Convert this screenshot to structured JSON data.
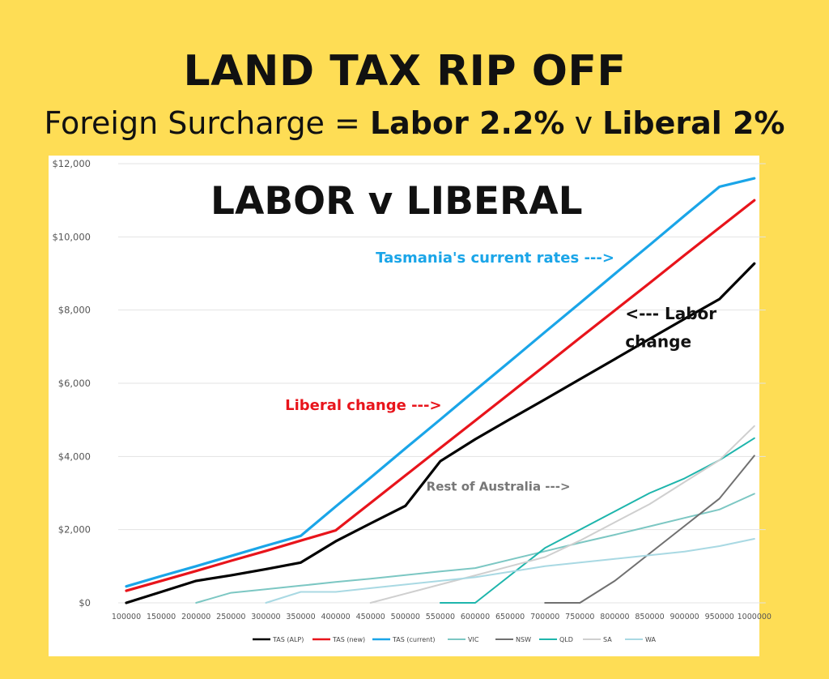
{
  "header": {
    "title": "LAND TAX RIP OFF",
    "subtitle_prefix": "Foreign Surcharge = ",
    "subtitle_labor": "Labor 2.2%",
    "subtitle_mid": " v ",
    "subtitle_liberal": "Liberal 2%"
  },
  "chart_data": {
    "type": "line",
    "title": "LABOR v LIBERAL",
    "xlabel": "",
    "ylabel": "",
    "categories": [
      "100000",
      "150000",
      "200000",
      "250000",
      "300000",
      "350000",
      "400000",
      "450000",
      "500000",
      "550000",
      "600000",
      "650000",
      "700000",
      "750000",
      "800000",
      "850000",
      "900000",
      "950000",
      "1000000"
    ],
    "ylim": [
      0,
      12000
    ],
    "yticks": [
      0,
      2000,
      4000,
      6000,
      8000,
      10000,
      12000
    ],
    "ytick_labels": [
      "$0",
      "$2,000",
      "$4,000",
      "$6,000",
      "$8,000",
      "$10,000",
      "$12,000"
    ],
    "grid": true,
    "legend_position": "bottom",
    "series": [
      {
        "name": "TAS (ALP)",
        "color": "#000000",
        "width": 3.2,
        "values": [
          0,
          300,
          600,
          750,
          920,
          1100,
          1680,
          2170,
          2650,
          3870,
          4470,
          5020,
          5560,
          6110,
          6660,
          7210,
          7760,
          8300,
          9270
        ]
      },
      {
        "name": "TAS (new)",
        "color": "#E8141B",
        "width": 3.2,
        "values": [
          330,
          600,
          870,
          1150,
          1420,
          1700,
          1980,
          2730,
          3480,
          4230,
          4980,
          5730,
          6480,
          7240,
          7990,
          8740,
          9500,
          10250,
          11000
        ]
      },
      {
        "name": "TAS (current)",
        "color": "#1AA5E8",
        "width": 3.2,
        "values": [
          450,
          730,
          1000,
          1280,
          1560,
          1830,
          2630,
          3420,
          4220,
          5010,
          5810,
          6600,
          7400,
          8190,
          8990,
          9780,
          10580,
          11370,
          11600
        ]
      },
      {
        "name": "VIC",
        "color": "#7CC7C3",
        "width": 2,
        "values": [
          null,
          null,
          0,
          275,
          370,
          470,
          570,
          660,
          760,
          860,
          950,
          1180,
          1410,
          1640,
          1860,
          2090,
          2320,
          2550,
          2980
        ]
      },
      {
        "name": "NSW",
        "color": "#707070",
        "width": 2,
        "values": [
          null,
          null,
          null,
          null,
          null,
          null,
          null,
          null,
          null,
          null,
          null,
          null,
          0,
          0,
          600,
          1350,
          2100,
          2850,
          4020
        ]
      },
      {
        "name": "QLD",
        "color": "#1EB5AC",
        "width": 2,
        "values": [
          null,
          null,
          null,
          null,
          null,
          null,
          null,
          null,
          null,
          0,
          0,
          750,
          1500,
          2000,
          2500,
          3000,
          3400,
          3900,
          4500
        ]
      },
      {
        "name": "SA",
        "color": "#CFCFCF",
        "width": 2,
        "values": [
          null,
          null,
          null,
          null,
          null,
          null,
          null,
          0,
          250,
          500,
          750,
          1000,
          1250,
          1700,
          2200,
          2700,
          3300,
          3900,
          4830
        ]
      },
      {
        "name": "WA",
        "color": "#A9D9E3",
        "width": 2,
        "values": [
          null,
          null,
          null,
          null,
          0,
          300,
          300,
          400,
          500,
          600,
          700,
          850,
          1000,
          1100,
          1200,
          1300,
          1400,
          1550,
          1750
        ]
      }
    ],
    "annotations": [
      {
        "text": "Tasmania's current rates --->",
        "color": "#1AA5E8",
        "x_at": 7.15,
        "y_at": 9300,
        "size": 18
      },
      {
        "text": "<--- Labor",
        "color": "#111111",
        "x_at": 14.3,
        "y_at": 7750,
        "size": 20
      },
      {
        "text": "change",
        "color": "#111111",
        "x_at": 14.3,
        "y_at": 6980,
        "size": 20
      },
      {
        "text": "Liberal change --->",
        "color": "#E8141B",
        "x_at": 4.55,
        "y_at": 5270,
        "size": 18
      },
      {
        "text": "Rest of Australia --->",
        "color": "#777777",
        "x_at": 8.6,
        "y_at": 3070,
        "size": 15
      }
    ]
  }
}
